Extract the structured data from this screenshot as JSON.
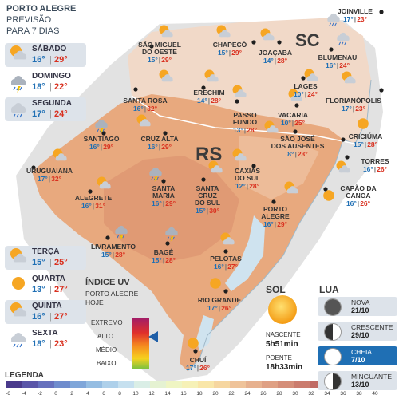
{
  "header": {
    "city": "PORTO ALEGRE",
    "line1": "PREVISÃO",
    "line2": "PARA 7 DIAS"
  },
  "forecast_top": [
    {
      "day": "SÁBADO",
      "min": "16°",
      "max": "29°",
      "icon": "partly-cloudy-icon"
    },
    {
      "day": "DOMINGO",
      "min": "18°",
      "max": "22°",
      "icon": "thunderstorm-icon"
    },
    {
      "day": "SEGUNDA",
      "min": "17°",
      "max": "24°",
      "icon": "rain-icon"
    }
  ],
  "forecast_bottom": [
    {
      "day": "TERÇA",
      "min": "15°",
      "max": "25°",
      "icon": "partly-cloudy-icon"
    },
    {
      "day": "QUARTA",
      "min": "13°",
      "max": "27°",
      "icon": "sun-icon"
    },
    {
      "day": "QUINTA",
      "min": "16°",
      "max": "27°",
      "icon": "partly-cloudy-icon"
    },
    {
      "day": "SEXTA",
      "min": "18°",
      "max": "23°",
      "icon": "rain-icon"
    }
  ],
  "state_labels": {
    "sc": "SC",
    "rs": "RS"
  },
  "cities": [
    {
      "name": "JOINVILLE",
      "min": "17°",
      "max": "23°"
    },
    {
      "name": "SÃO MIGUEL\nDO OESTE",
      "min": "15°",
      "max": "29°"
    },
    {
      "name": "CHAPECÓ",
      "min": "15°",
      "max": "29°"
    },
    {
      "name": "JOAÇABA",
      "min": "14°",
      "max": "28°"
    },
    {
      "name": "BLUMENAU",
      "min": "16°",
      "max": "24°"
    },
    {
      "name": "LAGES",
      "min": "10°",
      "max": "24°"
    },
    {
      "name": "FLORIANÓPOLIS",
      "min": "17°",
      "max": "23°"
    },
    {
      "name": "SANTA ROSA",
      "min": "16°",
      "max": "32°"
    },
    {
      "name": "ERECHIM",
      "min": "14°",
      "max": "28°"
    },
    {
      "name": "PASSO\nFUNDO",
      "min": "13°",
      "max": "28°"
    },
    {
      "name": "VACARIA",
      "min": "10°",
      "max": "25°"
    },
    {
      "name": "SÃO JOSÉ\nDOS AUSENTES",
      "min": "8°",
      "max": "23°"
    },
    {
      "name": "CRICIÚMA",
      "min": "15°",
      "max": "28°"
    },
    {
      "name": "SANTIAGO",
      "min": "16°",
      "max": "29°"
    },
    {
      "name": "CRUZ ALTA",
      "min": "16°",
      "max": "29°"
    },
    {
      "name": "TORRES",
      "min": "16°",
      "max": "26°"
    },
    {
      "name": "URUGUAIANA",
      "min": "17°",
      "max": "32°"
    },
    {
      "name": "CAXIAS\nDO SUL",
      "min": "12°",
      "max": "28°"
    },
    {
      "name": "SANTA\nMARIA",
      "min": "16°",
      "max": "29°"
    },
    {
      "name": "SANTA\nCRUZ\nDO SUL",
      "min": "15°",
      "max": "30°"
    },
    {
      "name": "CAPÃO DA\nCANOA",
      "min": "16°",
      "max": "26°"
    },
    {
      "name": "ALEGRETE",
      "min": "16°",
      "max": "31°"
    },
    {
      "name": "PORTO\nALEGRE",
      "min": "16°",
      "max": "29°"
    },
    {
      "name": "LIVRAMENTO",
      "min": "15°",
      "max": "28°"
    },
    {
      "name": "BAGÉ",
      "min": "15°",
      "max": "28°"
    },
    {
      "name": "PELOTAS",
      "min": "16°",
      "max": "27°"
    },
    {
      "name": "RIO GRANDE",
      "min": "17°",
      "max": "26°"
    },
    {
      "name": "CHUÍ",
      "min": "17°",
      "max": "26°"
    }
  ],
  "uv": {
    "title": "ÍNDICE UV",
    "sub1": "PORTO ALEGRE",
    "sub2": "HOJE",
    "levels": [
      "EXTREMO",
      "ALTO",
      "MÉDIO",
      "BAIXO"
    ],
    "current_level": "ALTO"
  },
  "sol": {
    "title": "SOL",
    "rise_label": "NASCENTE",
    "rise": "5h51min",
    "set_label": "POENTE",
    "set": "18h33min"
  },
  "lua": {
    "title": "LUA",
    "phases": [
      {
        "name": "NOVA",
        "date": "21/10"
      },
      {
        "name": "CRESCENTE",
        "date": "29/10"
      },
      {
        "name": "CHEIA",
        "date": "7/10"
      },
      {
        "name": "MINGUANTE",
        "date": "13/10"
      }
    ]
  },
  "legend": {
    "title": "LEGENDA",
    "values": [
      "-6",
      "-4",
      "-2",
      "0",
      "2",
      "4",
      "6",
      "8",
      "10",
      "12",
      "14",
      "16",
      "18",
      "20",
      "22",
      "24",
      "26",
      "28",
      "30",
      "32",
      "34",
      "36",
      "38",
      "40"
    ],
    "colors": [
      "#4a3a8c",
      "#5a55a8",
      "#6670bd",
      "#6f8ccd",
      "#7fa6d9",
      "#95bde2",
      "#aed0ea",
      "#c6e0ef",
      "#daeee6",
      "#e5f2d2",
      "#eff5c3",
      "#f6f1b7",
      "#f9e6a8",
      "#f6d6a0",
      "#efc39a",
      "#e7b18f",
      "#dfa084",
      "#d58e79",
      "#cb7c6e",
      "#c06a64",
      "#b5585a",
      "#aa4650",
      "#9e3446",
      "#92223c"
    ]
  }
}
